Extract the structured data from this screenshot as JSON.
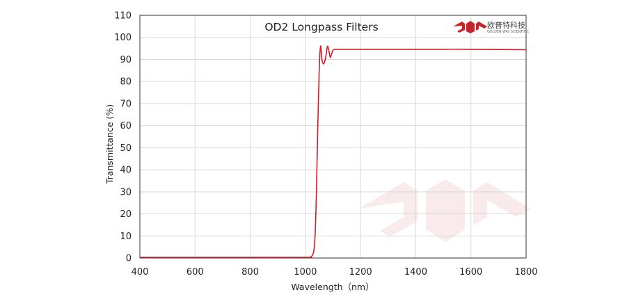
{
  "chart_data": {
    "type": "line",
    "title": "OD2  Longpass Filters",
    "xlabel": "Wavelength（nm）",
    "ylabel": "Transmittance  (%)",
    "xlim": [
      400,
      1800
    ],
    "ylim": [
      0,
      110
    ],
    "xticks": [
      400,
      600,
      800,
      1000,
      1200,
      1400,
      1600,
      1800
    ],
    "yticks": [
      0,
      10,
      20,
      30,
      40,
      50,
      60,
      70,
      80,
      90,
      100,
      110
    ],
    "grid": true,
    "line_color": "#d7192a",
    "series": [
      {
        "x": [
          400,
          600,
          800,
          1000,
          1020,
          1030,
          1035,
          1040,
          1045,
          1050,
          1055,
          1060,
          1065,
          1070,
          1075,
          1080,
          1085,
          1090,
          1095,
          1100,
          1105,
          1110,
          1120,
          1150,
          1200,
          1300,
          1400,
          1500,
          1600,
          1700,
          1800
        ],
        "y": [
          0.3,
          0.3,
          0.3,
          0.3,
          0.5,
          3,
          10,
          30,
          60,
          85,
          96,
          90,
          88,
          89,
          92,
          96,
          94,
          91,
          92.5,
          94.2,
          94.5,
          94.6,
          94.6,
          94.6,
          94.6,
          94.6,
          94.6,
          94.6,
          94.6,
          94.5,
          94.4
        ]
      }
    ]
  },
  "logo": {
    "name_cn": "欧普特科技",
    "name_en": "GOLDEN WAY SCIENTIFIC",
    "color": "#c8242c"
  }
}
